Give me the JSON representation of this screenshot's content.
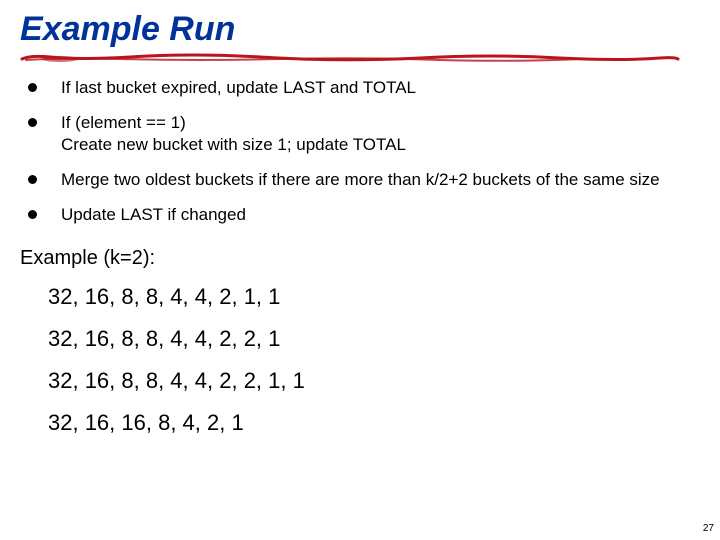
{
  "title": "Example Run",
  "title_color": "#003399",
  "underline_color": "#b8151c",
  "bullets": [
    "If last bucket expired, update LAST and TOTAL",
    "If (element == 1)\nCreate new bucket with size 1; update TOTAL",
    "Merge two oldest buckets if there are more than k/2+2 buckets of the same size",
    "Update LAST if changed"
  ],
  "example_label": "Example (k=2):",
  "examples": [
    "32, 16, 8, 8, 4, 4, 2, 1, 1",
    "32, 16, 8, 8, 4, 4, 2, 2, 1",
    "32, 16, 8, 8, 4, 4, 2, 2, 1, 1",
    "32, 16, 16, 8, 4, 2, 1"
  ],
  "page_number": "27"
}
